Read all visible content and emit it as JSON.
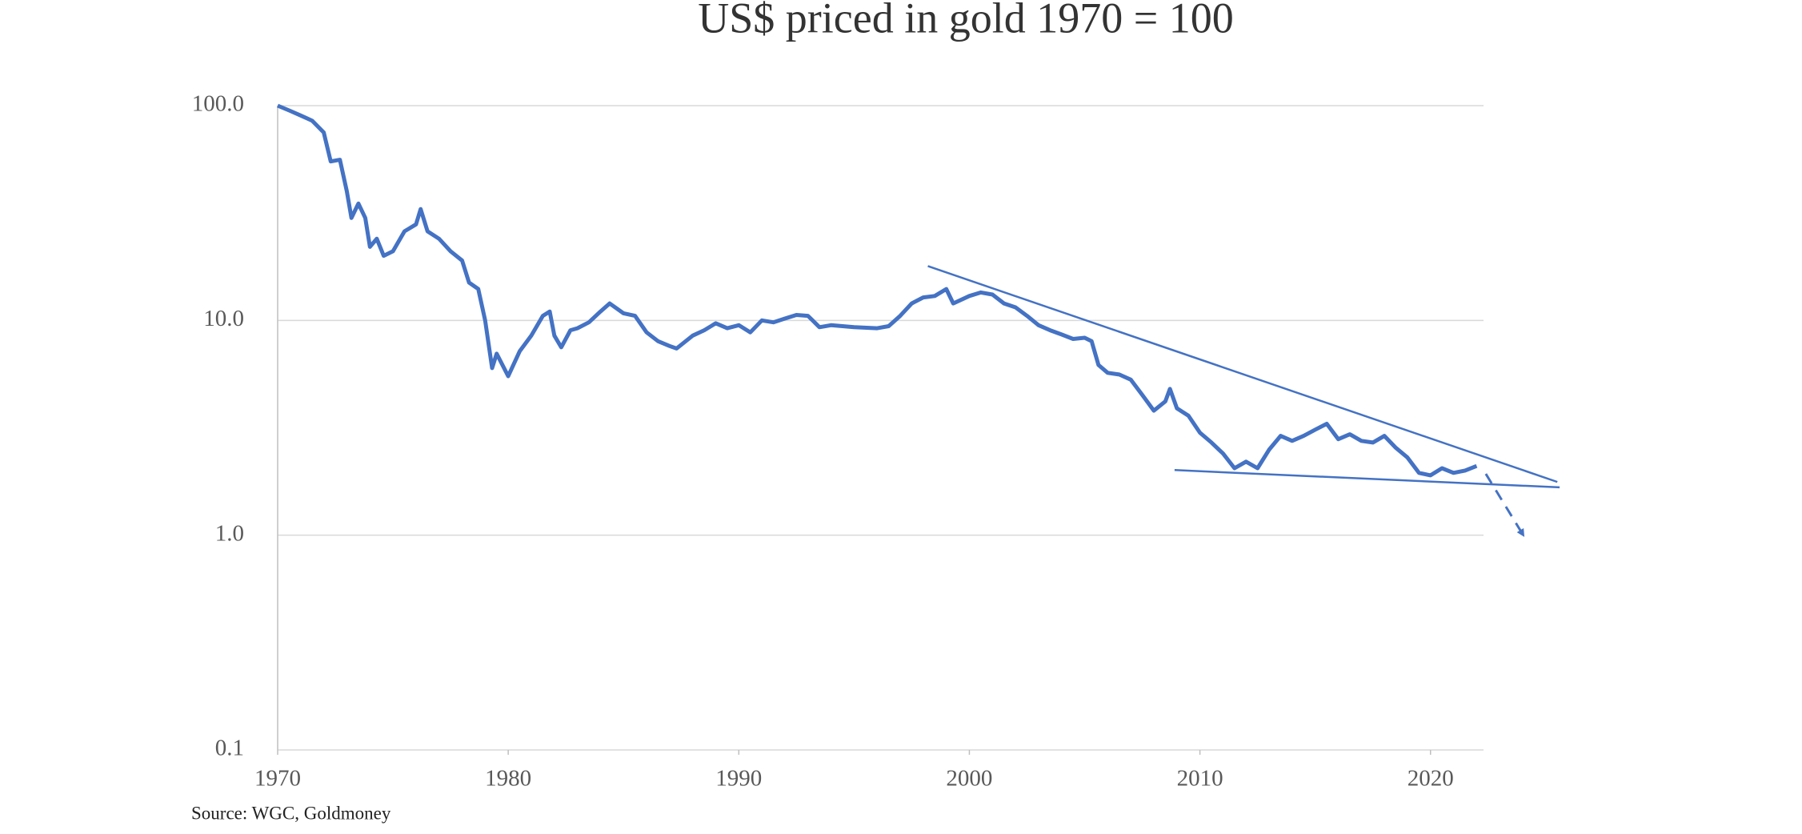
{
  "chart_data": {
    "type": "line",
    "title": "US$ priced in gold 1970 = 100",
    "source": "Source: WGC, Goldmoney",
    "log_scale": true,
    "grid": true,
    "color": "#4472c4",
    "x": [
      1970,
      1970.5,
      1971,
      1971.5,
      1972,
      1972.3,
      1972.7,
      1973,
      1973.2,
      1973.5,
      1973.8,
      1974,
      1974.3,
      1974.6,
      1975,
      1975.5,
      1976,
      1976.2,
      1976.5,
      1977,
      1977.5,
      1978,
      1978.3,
      1978.7,
      1979,
      1979.3,
      1979.5,
      1980,
      1980.5,
      1981,
      1981.5,
      1981.8,
      1982,
      1982.3,
      1982.7,
      1983,
      1983.5,
      1984,
      1984.4,
      1985,
      1985.5,
      1986,
      1986.5,
      1987,
      1987.3,
      1988,
      1988.5,
      1989,
      1989.5,
      1990,
      1990.5,
      1991,
      1991.5,
      1992,
      1992.5,
      1993,
      1993.5,
      1994,
      1995,
      1996,
      1996.5,
      1997,
      1997.5,
      1998,
      1998.5,
      1999,
      1999.3,
      2000,
      2000.5,
      2001,
      2001.5,
      2002,
      2002.5,
      2003,
      2003.5,
      2004,
      2004.5,
      2005,
      2005.3,
      2005.6,
      2006,
      2006.5,
      2007,
      2007.5,
      2008,
      2008.5,
      2008.7,
      2009,
      2009.5,
      2010,
      2010.5,
      2011,
      2011.5,
      2012,
      2012.5,
      2013,
      2013.5,
      2014,
      2014.5,
      2015,
      2015.5,
      2016,
      2016.5,
      2017,
      2017.5,
      2018,
      2018.5,
      2019,
      2019.5,
      2020,
      2020.5,
      2021,
      2021.5,
      2022
    ],
    "values": [
      100,
      95,
      90,
      85,
      75,
      55,
      56,
      40,
      30,
      35,
      30,
      22,
      24,
      20,
      21,
      26,
      28,
      33,
      26,
      24,
      21,
      19,
      15,
      14,
      10,
      6,
      7,
      5.5,
      7.2,
      8.5,
      10.5,
      11,
      8.5,
      7.5,
      9,
      9.2,
      9.8,
      11,
      12,
      10.8,
      10.5,
      8.8,
      8,
      7.6,
      7.4,
      8.5,
      9,
      9.7,
      9.2,
      9.5,
      8.8,
      10,
      9.8,
      10.2,
      10.6,
      10.5,
      9.3,
      9.5,
      9.3,
      9.2,
      9.4,
      10.5,
      12,
      12.8,
      13,
      14,
      12,
      13,
      13.5,
      13.2,
      12,
      11.5,
      10.5,
      9.5,
      9,
      8.6,
      8.2,
      8.3,
      8,
      6.2,
      5.7,
      5.6,
      5.3,
      4.5,
      3.8,
      4.2,
      4.8,
      3.9,
      3.6,
      3,
      2.7,
      2.4,
      2.05,
      2.2,
      2.05,
      2.5,
      2.9,
      2.75,
      2.9,
      3.1,
      3.3,
      2.8,
      2.95,
      2.75,
      2.7,
      2.9,
      2.55,
      2.3,
      1.95,
      1.9,
      2.05,
      1.95,
      2.0,
      2.1
    ],
    "xlim": [
      1970,
      2022.3
    ],
    "xticks": [
      1970,
      1980,
      1990,
      2000,
      2010,
      2020
    ],
    "ylim": [
      0.1,
      100
    ],
    "yticks": [
      {
        "value": 100,
        "label": "100.0"
      },
      {
        "value": 10,
        "label": "10.0"
      },
      {
        "value": 1,
        "label": "1.0"
      },
      {
        "value": 0.1,
        "label": "0.1"
      }
    ],
    "trendlines": [
      {
        "x": [
          1998.2,
          2025.5
        ],
        "values": [
          17.9,
          1.77
        ],
        "dashed": false
      },
      {
        "x": [
          2008.9,
          2025.6
        ],
        "values": [
          2.01,
          1.67
        ],
        "dashed": false
      },
      {
        "x": [
          2022.4,
          2024.0
        ],
        "values": [
          1.93,
          1.01
        ],
        "dashed": true
      }
    ]
  }
}
